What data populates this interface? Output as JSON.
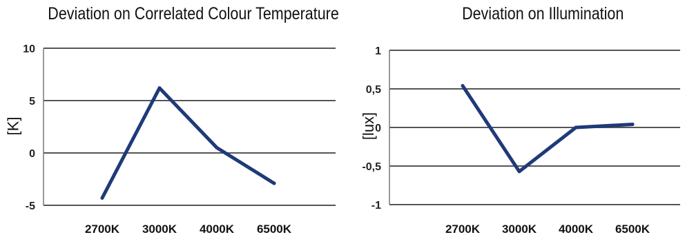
{
  "chart_data": [
    {
      "type": "line",
      "title": "Deviation on Correlated Colour Temperature",
      "ylabel": "[K]",
      "categories": [
        "2700K",
        "3000K",
        "4000K",
        "6500K"
      ],
      "yticks": [
        "10",
        "5",
        "0",
        "-5"
      ],
      "ylim": [
        -5,
        10
      ],
      "grid": true,
      "series": [
        {
          "values": [
            -4.3,
            6.2,
            0.5,
            -2.9
          ],
          "color": "#1f3a78"
        }
      ]
    },
    {
      "type": "line",
      "title": "Deviation on Illumination",
      "ylabel": "[lux]",
      "categories": [
        "2700K",
        "3000K",
        "4000K",
        "6500K"
      ],
      "yticks": [
        "1",
        "0,5",
        "0",
        "-0,5",
        "-1"
      ],
      "ylim": [
        -1,
        1
      ],
      "grid": true,
      "series": [
        {
          "values": [
            0.54,
            -0.57,
            0.0,
            0.04
          ],
          "color": "#1f3a78"
        }
      ]
    }
  ]
}
